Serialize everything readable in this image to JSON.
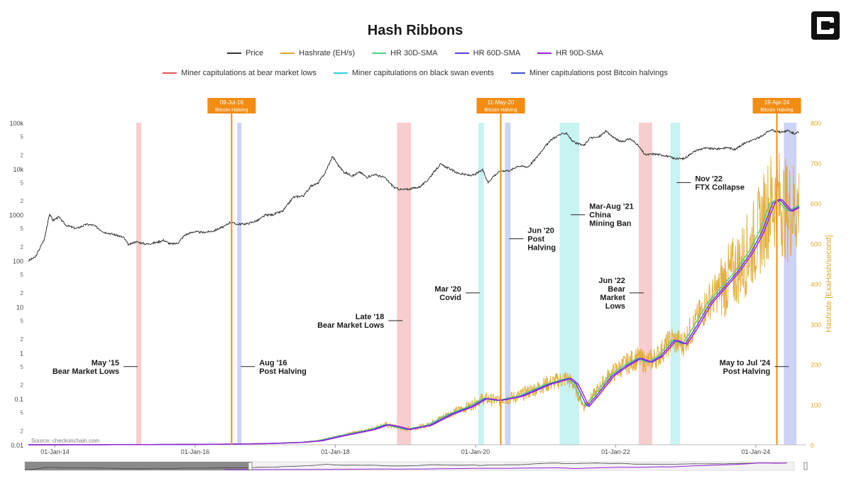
{
  "title": "Hash Ribbons",
  "colors": {
    "price": "#333333",
    "hashrate": "#e0a72a",
    "hr30": "#4ed17e",
    "hr60": "#5a3df5",
    "hr90": "#9a1fd6",
    "bear": "#e35252",
    "swan": "#34d3da",
    "halving": "#3c4fd6",
    "halving_line": "#f28c12",
    "hash_axis": "#e0a72a"
  },
  "legend": {
    "row1": [
      {
        "label": "Price",
        "color_key": "price"
      },
      {
        "label": "Hashrate (EH/s)",
        "color_key": "hashrate"
      },
      {
        "label": "HR 30D-SMA",
        "color_key": "hr30"
      },
      {
        "label": "HR 60D-SMA",
        "color_key": "hr60"
      },
      {
        "label": "HR 90D-SMA",
        "color_key": "hr90"
      }
    ],
    "row2": [
      {
        "label": "Miner capitulations at bear market lows",
        "color_key": "bear"
      },
      {
        "label": "Miner capitulations on black swan events",
        "color_key": "swan"
      },
      {
        "label": "Miner capitulations post Bitcoin halvings",
        "color_key": "halving"
      }
    ]
  },
  "source": "Source: checkonchain.com",
  "chart_data": {
    "type": "line",
    "title": "Hash Ribbons",
    "x_range": [
      2013.62,
      2024.72
    ],
    "x_ticks": [
      {
        "year": 2014.0,
        "label": "01-Jan-14"
      },
      {
        "year": 2016.0,
        "label": "01-Jan-16"
      },
      {
        "year": 2018.0,
        "label": "01-Jan-18"
      },
      {
        "year": 2020.0,
        "label": "01-Jan-20"
      },
      {
        "year": 2022.0,
        "label": "01-Jan-22"
      },
      {
        "year": 2024.0,
        "label": "01-Jan-24"
      }
    ],
    "y_left": {
      "scale": "log",
      "range": [
        0.01,
        100000
      ],
      "major_ticks": [
        {
          "v": 100000,
          "label": "100k"
        },
        {
          "v": 10000,
          "label": "10k"
        },
        {
          "v": 1000,
          "label": "1000"
        },
        {
          "v": 100,
          "label": "100"
        },
        {
          "v": 10,
          "label": "10"
        },
        {
          "v": 1,
          "label": "1"
        },
        {
          "v": 0.1,
          "label": "0.1"
        },
        {
          "v": 0.01,
          "label": "0.01"
        }
      ],
      "minor_ticks": [
        {
          "v": 50000,
          "label": "5"
        },
        {
          "v": 20000,
          "label": "2"
        },
        {
          "v": 5000,
          "label": "5"
        },
        {
          "v": 2000,
          "label": "2"
        },
        {
          "v": 500,
          "label": "5"
        },
        {
          "v": 200,
          "label": "2"
        },
        {
          "v": 50,
          "label": "5"
        },
        {
          "v": 20,
          "label": "2"
        },
        {
          "v": 5,
          "label": "5"
        },
        {
          "v": 2,
          "label": "2"
        },
        {
          "v": 0.5,
          "label": "5"
        },
        {
          "v": 0.2,
          "label": "2"
        },
        {
          "v": 0.05,
          "label": "5"
        },
        {
          "v": 0.02,
          "label": "2"
        }
      ]
    },
    "y_right": {
      "label": "Hashrate [ExaHash/second]",
      "range": [
        0,
        800
      ],
      "ticks": [
        {
          "v": 0,
          "label": "0"
        },
        {
          "v": 100,
          "label": "100"
        },
        {
          "v": 200,
          "label": "200"
        },
        {
          "v": 300,
          "label": "300"
        },
        {
          "v": 400,
          "label": "400"
        },
        {
          "v": 500,
          "label": "500"
        },
        {
          "v": 600,
          "label": "600"
        },
        {
          "v": 700,
          "label": "700"
        },
        {
          "v": 800,
          "label": "800"
        }
      ]
    },
    "price": [
      [
        2013.62,
        100
      ],
      [
        2013.72,
        120
      ],
      [
        2013.85,
        300
      ],
      [
        2013.92,
        1050
      ],
      [
        2013.97,
        750
      ],
      [
        2014.05,
        900
      ],
      [
        2014.15,
        600
      ],
      [
        2014.3,
        500
      ],
      [
        2014.45,
        620
      ],
      [
        2014.55,
        590
      ],
      [
        2014.7,
        420
      ],
      [
        2014.85,
        370
      ],
      [
        2014.98,
        320
      ],
      [
        2015.05,
        220
      ],
      [
        2015.15,
        260
      ],
      [
        2015.3,
        230
      ],
      [
        2015.45,
        250
      ],
      [
        2015.55,
        280
      ],
      [
        2015.65,
        230
      ],
      [
        2015.75,
        240
      ],
      [
        2015.85,
        360
      ],
      [
        2015.98,
        430
      ],
      [
        2016.1,
        410
      ],
      [
        2016.25,
        440
      ],
      [
        2016.42,
        560
      ],
      [
        2016.5,
        690
      ],
      [
        2016.6,
        620
      ],
      [
        2016.75,
        640
      ],
      [
        2016.9,
        760
      ],
      [
        2017.0,
        980
      ],
      [
        2017.1,
        1000
      ],
      [
        2017.25,
        1200
      ],
      [
        2017.4,
        2400
      ],
      [
        2017.55,
        2600
      ],
      [
        2017.65,
        4200
      ],
      [
        2017.75,
        4800
      ],
      [
        2017.85,
        8000
      ],
      [
        2017.96,
        18500
      ],
      [
        2018.05,
        11500
      ],
      [
        2018.12,
        8500
      ],
      [
        2018.25,
        7000
      ],
      [
        2018.35,
        8500
      ],
      [
        2018.45,
        6500
      ],
      [
        2018.55,
        7500
      ],
      [
        2018.7,
        6500
      ],
      [
        2018.85,
        3800
      ],
      [
        2018.95,
        3500
      ],
      [
        2019.05,
        3600
      ],
      [
        2019.2,
        4000
      ],
      [
        2019.3,
        5300
      ],
      [
        2019.42,
        9000
      ],
      [
        2019.5,
        12500
      ],
      [
        2019.6,
        10500
      ],
      [
        2019.75,
        8000
      ],
      [
        2019.9,
        7200
      ],
      [
        2019.98,
        7300
      ],
      [
        2020.1,
        9500
      ],
      [
        2020.18,
        5000
      ],
      [
        2020.25,
        6800
      ],
      [
        2020.36,
        9000
      ],
      [
        2020.5,
        9200
      ],
      [
        2020.6,
        11500
      ],
      [
        2020.75,
        11000
      ],
      [
        2020.85,
        16000
      ],
      [
        2020.98,
        29000
      ],
      [
        2021.1,
        45000
      ],
      [
        2021.2,
        55000
      ],
      [
        2021.3,
        60000
      ],
      [
        2021.38,
        40000
      ],
      [
        2021.45,
        35000
      ],
      [
        2021.55,
        32000
      ],
      [
        2021.63,
        47000
      ],
      [
        2021.75,
        48000
      ],
      [
        2021.86,
        65000
      ],
      [
        2021.98,
        47000
      ],
      [
        2022.08,
        38000
      ],
      [
        2022.2,
        45000
      ],
      [
        2022.3,
        35000
      ],
      [
        2022.42,
        20000
      ],
      [
        2022.55,
        21000
      ],
      [
        2022.7,
        19500
      ],
      [
        2022.85,
        16500
      ],
      [
        2022.98,
        16600
      ],
      [
        2023.1,
        23000
      ],
      [
        2023.25,
        28000
      ],
      [
        2023.45,
        27000
      ],
      [
        2023.6,
        29000
      ],
      [
        2023.7,
        26000
      ],
      [
        2023.85,
        37000
      ],
      [
        2023.98,
        43000
      ],
      [
        2024.1,
        52000
      ],
      [
        2024.2,
        70000
      ],
      [
        2024.35,
        62000
      ],
      [
        2024.45,
        67000
      ],
      [
        2024.55,
        58000
      ],
      [
        2024.62,
        62000
      ]
    ],
    "hashrate_ma": [
      [
        2013.62,
        0.02
      ],
      [
        2014.0,
        0.05
      ],
      [
        2015.0,
        0.35
      ],
      [
        2016.0,
        1.0
      ],
      [
        2016.5,
        1.7
      ],
      [
        2017.0,
        3
      ],
      [
        2017.5,
        6
      ],
      [
        2017.75,
        10
      ],
      [
        2018.0,
        20
      ],
      [
        2018.5,
        38
      ],
      [
        2018.7,
        50
      ],
      [
        2018.85,
        45
      ],
      [
        2019.0,
        38
      ],
      [
        2019.3,
        48
      ],
      [
        2019.6,
        75
      ],
      [
        2019.9,
        95
      ],
      [
        2020.1,
        115
      ],
      [
        2020.3,
        110
      ],
      [
        2020.6,
        120
      ],
      [
        2020.8,
        135
      ],
      [
        2021.0,
        150
      ],
      [
        2021.3,
        165
      ],
      [
        2021.4,
        150
      ],
      [
        2021.55,
        95
      ],
      [
        2021.7,
        125
      ],
      [
        2021.9,
        170
      ],
      [
        2022.1,
        195
      ],
      [
        2022.3,
        215
      ],
      [
        2022.45,
        205
      ],
      [
        2022.6,
        220
      ],
      [
        2022.8,
        260
      ],
      [
        2022.95,
        250
      ],
      [
        2023.1,
        290
      ],
      [
        2023.3,
        350
      ],
      [
        2023.5,
        390
      ],
      [
        2023.7,
        430
      ],
      [
        2023.9,
        480
      ],
      [
        2024.05,
        530
      ],
      [
        2024.2,
        600
      ],
      [
        2024.3,
        610
      ],
      [
        2024.45,
        580
      ],
      [
        2024.62,
        595
      ]
    ],
    "capitulation_bands": [
      {
        "type": "bear",
        "start": 2015.16,
        "end": 2015.23
      },
      {
        "type": "halving",
        "start": 2016.6,
        "end": 2016.66
      },
      {
        "type": "bear",
        "start": 2018.88,
        "end": 2019.08
      },
      {
        "type": "swan",
        "start": 2020.04,
        "end": 2020.12
      },
      {
        "type": "halving",
        "start": 2020.42,
        "end": 2020.5
      },
      {
        "type": "swan",
        "start": 2021.2,
        "end": 2021.48
      },
      {
        "type": "bear",
        "start": 2022.33,
        "end": 2022.52
      },
      {
        "type": "swan",
        "start": 2022.78,
        "end": 2022.92
      },
      {
        "type": "halving",
        "start": 2024.4,
        "end": 2024.58
      }
    ],
    "halvings": [
      {
        "x": 2016.52,
        "date": "09-Jul-16",
        "label": "Bitcoin Halving"
      },
      {
        "x": 2020.36,
        "date": "11-May-20",
        "label": "Bitcoin Halving"
      },
      {
        "x": 2024.3,
        "date": "19-Apr-24",
        "label": "Bitcoin Halving"
      }
    ],
    "annotations": [
      {
        "lines": [
          "May '15",
          "Bear Market Lows"
        ],
        "x": 2015.2,
        "y": 0.5,
        "side": "left"
      },
      {
        "lines": [
          "Aug '16",
          "Post Halving"
        ],
        "x": 2016.63,
        "y": 0.5,
        "side": "right"
      },
      {
        "lines": [
          "Late '18",
          "Bear Market Lows"
        ],
        "x": 2018.98,
        "y": 5,
        "side": "left"
      },
      {
        "lines": [
          "Mar '20",
          "Covid"
        ],
        "x": 2020.08,
        "y": 20,
        "side": "left"
      },
      {
        "lines": [
          "Jun '20",
          "Post",
          "Halving"
        ],
        "x": 2020.46,
        "y": 300,
        "side": "right"
      },
      {
        "lines": [
          "Mar-Aug '21",
          "China",
          "Mining Ban"
        ],
        "x": 2021.34,
        "y": 1000,
        "side": "right"
      },
      {
        "lines": [
          "Jun '22",
          "Bear",
          "Market",
          "Lows"
        ],
        "x": 2022.42,
        "y": 20,
        "side": "left"
      },
      {
        "lines": [
          "Nov '22",
          "FTX Collapse"
        ],
        "x": 2022.85,
        "y": 5000,
        "side": "right"
      },
      {
        "lines": [
          "May to Jul '24",
          "Post Halving"
        ],
        "x": 2024.49,
        "y": 0.5,
        "side": "left"
      }
    ]
  }
}
